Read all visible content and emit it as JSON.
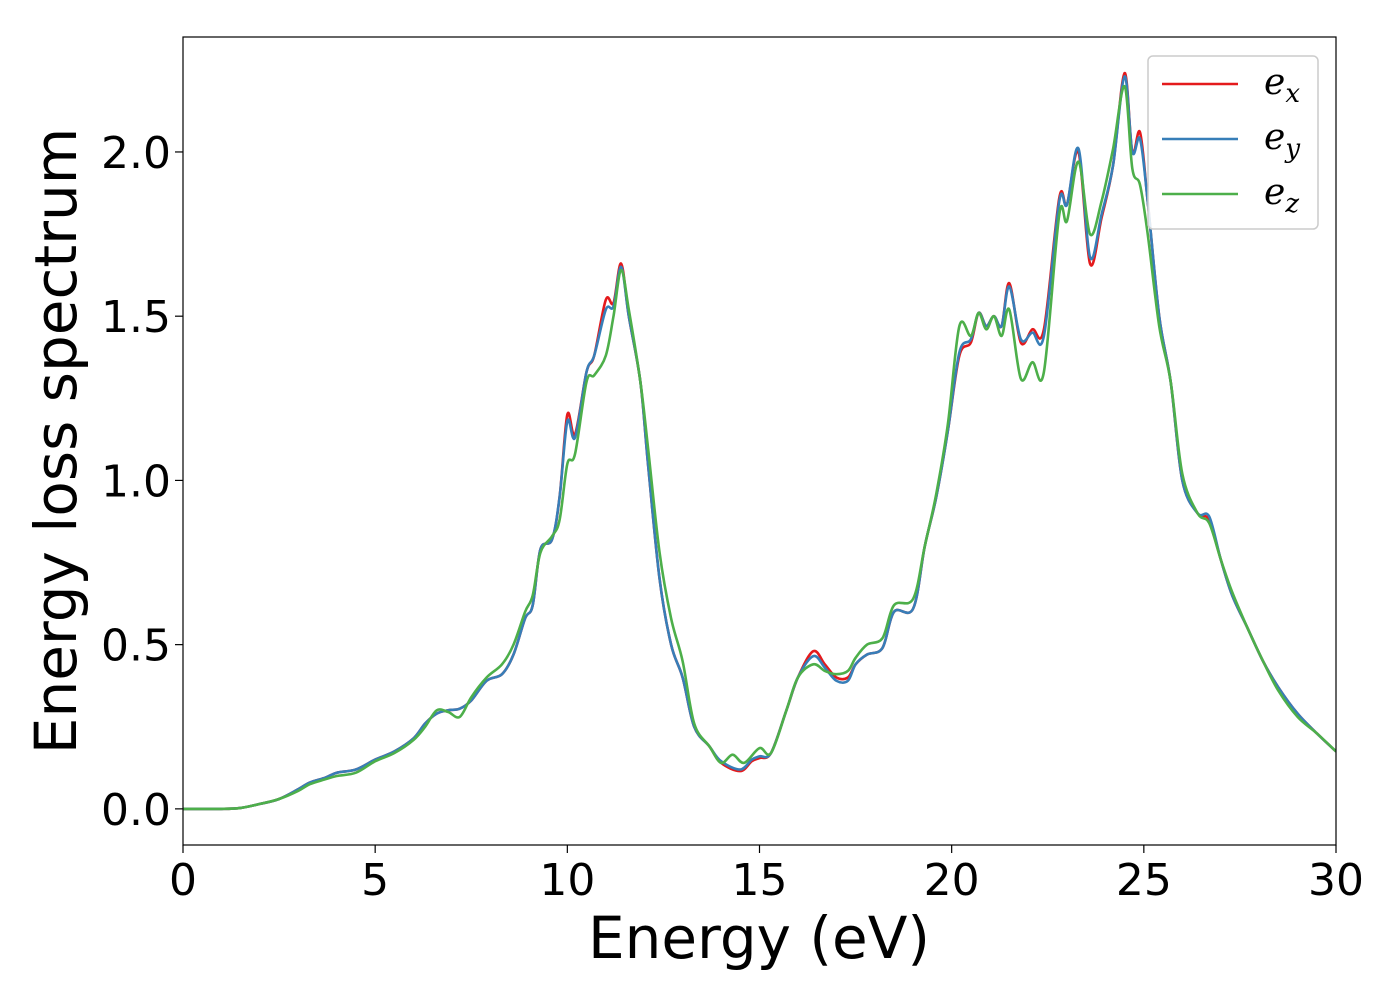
{
  "chart_data": {
    "type": "line",
    "title": "",
    "xlabel": "Energy (eV)",
    "ylabel": "Energy loss spectrum",
    "xlim": [
      0,
      30
    ],
    "ylim": [
      -0.11,
      2.35
    ],
    "xticks": [
      0,
      5,
      10,
      15,
      20,
      25,
      30
    ],
    "yticks": [
      0.0,
      0.5,
      1.0,
      1.5,
      2.0
    ],
    "xtick_labels": [
      "0",
      "5",
      "10",
      "15",
      "20",
      "25",
      "30"
    ],
    "ytick_labels": [
      "0.0",
      "0.5",
      "1.0",
      "1.5",
      "2.0"
    ],
    "grid": false,
    "legend_position": "top-right",
    "series": [
      {
        "name": "e_x",
        "label_base": "e",
        "label_sub": "x",
        "color": "#e41a1c",
        "points": [
          [
            0,
            0
          ],
          [
            1,
            0
          ],
          [
            1.5,
            0.003
          ],
          [
            2,
            0.015
          ],
          [
            2.5,
            0.03
          ],
          [
            3,
            0.06
          ],
          [
            3.3,
            0.08
          ],
          [
            3.7,
            0.095
          ],
          [
            4,
            0.11
          ],
          [
            4.5,
            0.12
          ],
          [
            5,
            0.15
          ],
          [
            5.5,
            0.175
          ],
          [
            6,
            0.215
          ],
          [
            6.3,
            0.26
          ],
          [
            6.6,
            0.29
          ],
          [
            6.9,
            0.3
          ],
          [
            7.2,
            0.305
          ],
          [
            7.5,
            0.33
          ],
          [
            7.9,
            0.39
          ],
          [
            8.3,
            0.41
          ],
          [
            8.6,
            0.47
          ],
          [
            8.9,
            0.58
          ],
          [
            9.1,
            0.62
          ],
          [
            9.3,
            0.79
          ],
          [
            9.6,
            0.82
          ],
          [
            9.8,
            0.95
          ],
          [
            10,
            1.2
          ],
          [
            10.2,
            1.14
          ],
          [
            10.5,
            1.33
          ],
          [
            10.7,
            1.38
          ],
          [
            11,
            1.55
          ],
          [
            11.2,
            1.54
          ],
          [
            11.4,
            1.66
          ],
          [
            11.6,
            1.5
          ],
          [
            11.9,
            1.3
          ],
          [
            12.1,
            1.05
          ],
          [
            12.4,
            0.7
          ],
          [
            12.7,
            0.5
          ],
          [
            13,
            0.4
          ],
          [
            13.3,
            0.25
          ],
          [
            13.7,
            0.19
          ],
          [
            14,
            0.14
          ],
          [
            14.5,
            0.115
          ],
          [
            14.8,
            0.145
          ],
          [
            15,
            0.155
          ],
          [
            15.3,
            0.17
          ],
          [
            15.7,
            0.3
          ],
          [
            16,
            0.4
          ],
          [
            16.4,
            0.48
          ],
          [
            16.7,
            0.44
          ],
          [
            17,
            0.4
          ],
          [
            17.3,
            0.4
          ],
          [
            17.5,
            0.44
          ],
          [
            17.8,
            0.47
          ],
          [
            18.2,
            0.49
          ],
          [
            18.5,
            0.6
          ],
          [
            19,
            0.61
          ],
          [
            19.3,
            0.8
          ],
          [
            19.6,
            0.95
          ],
          [
            19.9,
            1.15
          ],
          [
            20.2,
            1.38
          ],
          [
            20.5,
            1.42
          ],
          [
            20.7,
            1.51
          ],
          [
            20.9,
            1.47
          ],
          [
            21.1,
            1.5
          ],
          [
            21.3,
            1.47
          ],
          [
            21.5,
            1.6
          ],
          [
            21.8,
            1.42
          ],
          [
            22.1,
            1.46
          ],
          [
            22.4,
            1.46
          ],
          [
            22.8,
            1.86
          ],
          [
            23,
            1.84
          ],
          [
            23.3,
            2.0
          ],
          [
            23.6,
            1.66
          ],
          [
            23.9,
            1.8
          ],
          [
            24.2,
            1.96
          ],
          [
            24.5,
            2.24
          ],
          [
            24.7,
            2.0
          ],
          [
            24.9,
            2.06
          ],
          [
            25.1,
            1.85
          ],
          [
            25.4,
            1.5
          ],
          [
            25.7,
            1.3
          ],
          [
            26,
            1.0
          ],
          [
            26.4,
            0.9
          ],
          [
            26.7,
            0.88
          ],
          [
            27,
            0.76
          ],
          [
            27.3,
            0.65
          ],
          [
            27.7,
            0.55
          ],
          [
            28.1,
            0.45
          ],
          [
            28.5,
            0.37
          ],
          [
            29,
            0.29
          ],
          [
            29.5,
            0.23
          ],
          [
            30,
            0.175
          ]
        ]
      },
      {
        "name": "e_y",
        "label_base": "e",
        "label_sub": "y",
        "color": "#377eb8",
        "points": [
          [
            0,
            0
          ],
          [
            1,
            0
          ],
          [
            1.5,
            0.003
          ],
          [
            2,
            0.015
          ],
          [
            2.5,
            0.03
          ],
          [
            3,
            0.06
          ],
          [
            3.3,
            0.08
          ],
          [
            3.7,
            0.095
          ],
          [
            4,
            0.11
          ],
          [
            4.5,
            0.12
          ],
          [
            5,
            0.15
          ],
          [
            5.5,
            0.175
          ],
          [
            6,
            0.215
          ],
          [
            6.3,
            0.26
          ],
          [
            6.6,
            0.29
          ],
          [
            6.9,
            0.3
          ],
          [
            7.2,
            0.305
          ],
          [
            7.5,
            0.33
          ],
          [
            7.9,
            0.39
          ],
          [
            8.3,
            0.41
          ],
          [
            8.6,
            0.47
          ],
          [
            8.9,
            0.58
          ],
          [
            9.1,
            0.62
          ],
          [
            9.3,
            0.79
          ],
          [
            9.6,
            0.82
          ],
          [
            9.8,
            0.95
          ],
          [
            10,
            1.18
          ],
          [
            10.2,
            1.13
          ],
          [
            10.5,
            1.33
          ],
          [
            10.7,
            1.38
          ],
          [
            11,
            1.52
          ],
          [
            11.2,
            1.53
          ],
          [
            11.4,
            1.65
          ],
          [
            11.6,
            1.5
          ],
          [
            11.9,
            1.3
          ],
          [
            12.1,
            1.05
          ],
          [
            12.4,
            0.7
          ],
          [
            12.7,
            0.5
          ],
          [
            13,
            0.4
          ],
          [
            13.3,
            0.25
          ],
          [
            13.7,
            0.19
          ],
          [
            14,
            0.145
          ],
          [
            14.5,
            0.12
          ],
          [
            14.8,
            0.15
          ],
          [
            15,
            0.16
          ],
          [
            15.3,
            0.17
          ],
          [
            15.7,
            0.3
          ],
          [
            16,
            0.4
          ],
          [
            16.4,
            0.465
          ],
          [
            16.7,
            0.43
          ],
          [
            17,
            0.39
          ],
          [
            17.3,
            0.39
          ],
          [
            17.5,
            0.44
          ],
          [
            17.8,
            0.47
          ],
          [
            18.2,
            0.49
          ],
          [
            18.5,
            0.6
          ],
          [
            19,
            0.61
          ],
          [
            19.3,
            0.8
          ],
          [
            19.6,
            0.95
          ],
          [
            19.9,
            1.15
          ],
          [
            20.2,
            1.39
          ],
          [
            20.5,
            1.43
          ],
          [
            20.7,
            1.51
          ],
          [
            20.9,
            1.47
          ],
          [
            21.1,
            1.5
          ],
          [
            21.3,
            1.47
          ],
          [
            21.5,
            1.59
          ],
          [
            21.8,
            1.43
          ],
          [
            22.1,
            1.45
          ],
          [
            22.4,
            1.44
          ],
          [
            22.8,
            1.85
          ],
          [
            23,
            1.84
          ],
          [
            23.3,
            2.01
          ],
          [
            23.6,
            1.68
          ],
          [
            23.9,
            1.81
          ],
          [
            24.2,
            1.96
          ],
          [
            24.5,
            2.23
          ],
          [
            24.7,
            2.0
          ],
          [
            24.9,
            2.04
          ],
          [
            25.1,
            1.85
          ],
          [
            25.4,
            1.5
          ],
          [
            25.7,
            1.3
          ],
          [
            26,
            1.0
          ],
          [
            26.4,
            0.9
          ],
          [
            26.7,
            0.89
          ],
          [
            27,
            0.76
          ],
          [
            27.3,
            0.65
          ],
          [
            27.7,
            0.55
          ],
          [
            28.1,
            0.45
          ],
          [
            28.5,
            0.37
          ],
          [
            29,
            0.29
          ],
          [
            29.5,
            0.23
          ],
          [
            30,
            0.175
          ]
        ]
      },
      {
        "name": "e_z",
        "label_base": "e",
        "label_sub": "z",
        "color": "#4daf4a",
        "points": [
          [
            0,
            0
          ],
          [
            1,
            0
          ],
          [
            1.5,
            0.003
          ],
          [
            2,
            0.015
          ],
          [
            2.5,
            0.03
          ],
          [
            3,
            0.055
          ],
          [
            3.3,
            0.075
          ],
          [
            3.7,
            0.09
          ],
          [
            4,
            0.1
          ],
          [
            4.5,
            0.11
          ],
          [
            5,
            0.145
          ],
          [
            5.5,
            0.17
          ],
          [
            6,
            0.21
          ],
          [
            6.3,
            0.25
          ],
          [
            6.6,
            0.3
          ],
          [
            6.9,
            0.295
          ],
          [
            7.2,
            0.28
          ],
          [
            7.5,
            0.34
          ],
          [
            7.9,
            0.4
          ],
          [
            8.3,
            0.44
          ],
          [
            8.6,
            0.5
          ],
          [
            8.9,
            0.6
          ],
          [
            9.1,
            0.65
          ],
          [
            9.3,
            0.78
          ],
          [
            9.6,
            0.83
          ],
          [
            9.8,
            0.88
          ],
          [
            10,
            1.05
          ],
          [
            10.2,
            1.08
          ],
          [
            10.5,
            1.3
          ],
          [
            10.7,
            1.32
          ],
          [
            11,
            1.38
          ],
          [
            11.2,
            1.5
          ],
          [
            11.4,
            1.64
          ],
          [
            11.6,
            1.52
          ],
          [
            11.9,
            1.3
          ],
          [
            12.1,
            1.1
          ],
          [
            12.4,
            0.78
          ],
          [
            12.7,
            0.58
          ],
          [
            13,
            0.45
          ],
          [
            13.3,
            0.26
          ],
          [
            13.7,
            0.19
          ],
          [
            14,
            0.14
          ],
          [
            14.3,
            0.165
          ],
          [
            14.6,
            0.14
          ],
          [
            15,
            0.185
          ],
          [
            15.3,
            0.17
          ],
          [
            15.7,
            0.3
          ],
          [
            16,
            0.4
          ],
          [
            16.4,
            0.44
          ],
          [
            16.7,
            0.42
          ],
          [
            17,
            0.41
          ],
          [
            17.3,
            0.42
          ],
          [
            17.5,
            0.46
          ],
          [
            17.8,
            0.5
          ],
          [
            18.2,
            0.52
          ],
          [
            18.5,
            0.62
          ],
          [
            19,
            0.64
          ],
          [
            19.3,
            0.8
          ],
          [
            19.6,
            0.96
          ],
          [
            19.9,
            1.17
          ],
          [
            20.2,
            1.47
          ],
          [
            20.5,
            1.44
          ],
          [
            20.7,
            1.51
          ],
          [
            20.9,
            1.46
          ],
          [
            21.1,
            1.5
          ],
          [
            21.3,
            1.44
          ],
          [
            21.5,
            1.52
          ],
          [
            21.8,
            1.31
          ],
          [
            22.1,
            1.36
          ],
          [
            22.4,
            1.33
          ],
          [
            22.8,
            1.81
          ],
          [
            23,
            1.79
          ],
          [
            23.3,
            1.97
          ],
          [
            23.6,
            1.75
          ],
          [
            23.9,
            1.85
          ],
          [
            24.2,
            2.01
          ],
          [
            24.5,
            2.2
          ],
          [
            24.7,
            1.95
          ],
          [
            24.9,
            1.9
          ],
          [
            25.1,
            1.75
          ],
          [
            25.4,
            1.47
          ],
          [
            25.7,
            1.3
          ],
          [
            26,
            1.02
          ],
          [
            26.4,
            0.9
          ],
          [
            26.7,
            0.87
          ],
          [
            27,
            0.76
          ],
          [
            27.3,
            0.66
          ],
          [
            27.7,
            0.55
          ],
          [
            28.1,
            0.45
          ],
          [
            28.5,
            0.36
          ],
          [
            29,
            0.28
          ],
          [
            29.5,
            0.23
          ],
          [
            30,
            0.175
          ]
        ]
      }
    ]
  }
}
